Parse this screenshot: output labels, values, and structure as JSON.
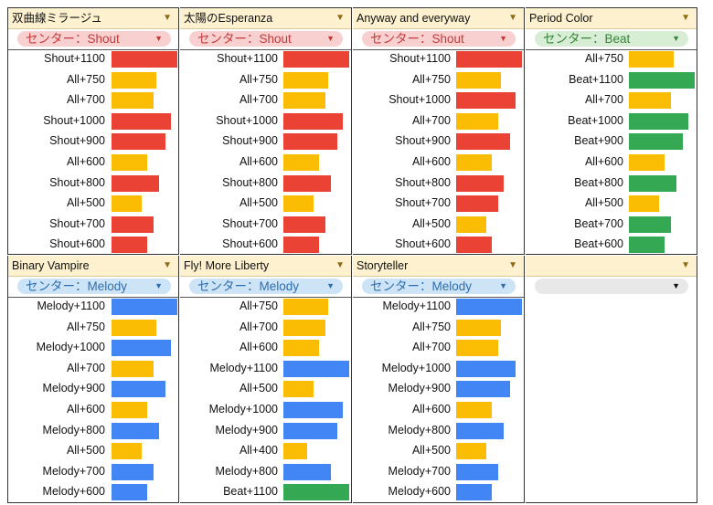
{
  "colors": {
    "Shout": "#ea4335",
    "All": "#fbbc04",
    "Beat": "#34a853",
    "Melody": "#4285f4"
  },
  "max_value": 1100,
  "panels": [
    {
      "title": "双曲線ミラージュ",
      "filter": "センター：Shout",
      "filter_type": "shout",
      "items": [
        {
          "label": "Shout+1100",
          "type": "Shout",
          "value": 1100
        },
        {
          "label": "All+750",
          "type": "All",
          "value": 750
        },
        {
          "label": "All+700",
          "type": "All",
          "value": 700
        },
        {
          "label": "Shout+1000",
          "type": "Shout",
          "value": 1000
        },
        {
          "label": "Shout+900",
          "type": "Shout",
          "value": 900
        },
        {
          "label": "All+600",
          "type": "All",
          "value": 600
        },
        {
          "label": "Shout+800",
          "type": "Shout",
          "value": 800
        },
        {
          "label": "All+500",
          "type": "All",
          "value": 500
        },
        {
          "label": "Shout+700",
          "type": "Shout",
          "value": 700
        },
        {
          "label": "Shout+600",
          "type": "Shout",
          "value": 600
        }
      ]
    },
    {
      "title": "太陽のEsperanza",
      "filter": "センター：Shout",
      "filter_type": "shout",
      "items": [
        {
          "label": "Shout+1100",
          "type": "Shout",
          "value": 1100
        },
        {
          "label": "All+750",
          "type": "All",
          "value": 750
        },
        {
          "label": "All+700",
          "type": "All",
          "value": 700
        },
        {
          "label": "Shout+1000",
          "type": "Shout",
          "value": 1000
        },
        {
          "label": "Shout+900",
          "type": "Shout",
          "value": 900
        },
        {
          "label": "All+600",
          "type": "All",
          "value": 600
        },
        {
          "label": "Shout+800",
          "type": "Shout",
          "value": 800
        },
        {
          "label": "All+500",
          "type": "All",
          "value": 500
        },
        {
          "label": "Shout+700",
          "type": "Shout",
          "value": 700
        },
        {
          "label": "Shout+600",
          "type": "Shout",
          "value": 600
        }
      ]
    },
    {
      "title": "Anyway and everyway",
      "filter": "センター：Shout",
      "filter_type": "shout",
      "items": [
        {
          "label": "Shout+1100",
          "type": "Shout",
          "value": 1100
        },
        {
          "label": "All+750",
          "type": "All",
          "value": 750
        },
        {
          "label": "Shout+1000",
          "type": "Shout",
          "value": 1000
        },
        {
          "label": "All+700",
          "type": "All",
          "value": 700
        },
        {
          "label": "Shout+900",
          "type": "Shout",
          "value": 900
        },
        {
          "label": "All+600",
          "type": "All",
          "value": 600
        },
        {
          "label": "Shout+800",
          "type": "Shout",
          "value": 800
        },
        {
          "label": "Shout+700",
          "type": "Shout",
          "value": 700
        },
        {
          "label": "All+500",
          "type": "All",
          "value": 500
        },
        {
          "label": "Shout+600",
          "type": "Shout",
          "value": 600
        }
      ]
    },
    {
      "title": "Period Color",
      "filter": "センター：Beat",
      "filter_type": "beat",
      "items": [
        {
          "label": "All+750",
          "type": "All",
          "value": 750
        },
        {
          "label": "Beat+1100",
          "type": "Beat",
          "value": 1100
        },
        {
          "label": "All+700",
          "type": "All",
          "value": 700
        },
        {
          "label": "Beat+1000",
          "type": "Beat",
          "value": 1000
        },
        {
          "label": "Beat+900",
          "type": "Beat",
          "value": 900
        },
        {
          "label": "All+600",
          "type": "All",
          "value": 600
        },
        {
          "label": "Beat+800",
          "type": "Beat",
          "value": 800
        },
        {
          "label": "All+500",
          "type": "All",
          "value": 500
        },
        {
          "label": "Beat+700",
          "type": "Beat",
          "value": 700
        },
        {
          "label": "Beat+600",
          "type": "Beat",
          "value": 600
        }
      ]
    },
    {
      "title": "Binary Vampire",
      "filter": "センター：Melody",
      "filter_type": "melody",
      "items": [
        {
          "label": "Melody+1100",
          "type": "Melody",
          "value": 1100
        },
        {
          "label": "All+750",
          "type": "All",
          "value": 750
        },
        {
          "label": "Melody+1000",
          "type": "Melody",
          "value": 1000
        },
        {
          "label": "All+700",
          "type": "All",
          "value": 700
        },
        {
          "label": "Melody+900",
          "type": "Melody",
          "value": 900
        },
        {
          "label": "All+600",
          "type": "All",
          "value": 600
        },
        {
          "label": "Melody+800",
          "type": "Melody",
          "value": 800
        },
        {
          "label": "All+500",
          "type": "All",
          "value": 500
        },
        {
          "label": "Melody+700",
          "type": "Melody",
          "value": 700
        },
        {
          "label": "Melody+600",
          "type": "Melody",
          "value": 600
        }
      ]
    },
    {
      "title": "Fly! More Liberty",
      "filter": "センター：Melody",
      "filter_type": "melody",
      "items": [
        {
          "label": "All+750",
          "type": "All",
          "value": 750
        },
        {
          "label": "All+700",
          "type": "All",
          "value": 700
        },
        {
          "label": "All+600",
          "type": "All",
          "value": 600
        },
        {
          "label": "Melody+1100",
          "type": "Melody",
          "value": 1100
        },
        {
          "label": "All+500",
          "type": "All",
          "value": 500
        },
        {
          "label": "Melody+1000",
          "type": "Melody",
          "value": 1000
        },
        {
          "label": "Melody+900",
          "type": "Melody",
          "value": 900
        },
        {
          "label": "All+400",
          "type": "All",
          "value": 400
        },
        {
          "label": "Melody+800",
          "type": "Melody",
          "value": 800
        },
        {
          "label": "Beat+1100",
          "type": "Beat",
          "value": 1100
        }
      ]
    },
    {
      "title": "Storyteller",
      "filter": "センター：Melody",
      "filter_type": "melody",
      "items": [
        {
          "label": "Melody+1100",
          "type": "Melody",
          "value": 1100
        },
        {
          "label": "All+750",
          "type": "All",
          "value": 750
        },
        {
          "label": "All+700",
          "type": "All",
          "value": 700
        },
        {
          "label": "Melody+1000",
          "type": "Melody",
          "value": 1000
        },
        {
          "label": "Melody+900",
          "type": "Melody",
          "value": 900
        },
        {
          "label": "All+600",
          "type": "All",
          "value": 600
        },
        {
          "label": "Melody+800",
          "type": "Melody",
          "value": 800
        },
        {
          "label": "All+500",
          "type": "All",
          "value": 500
        },
        {
          "label": "Melody+700",
          "type": "Melody",
          "value": 700
        },
        {
          "label": "Melody+600",
          "type": "Melody",
          "value": 600
        }
      ]
    },
    {
      "title": "",
      "filter": "",
      "filter_type": "empty",
      "items": []
    }
  ]
}
